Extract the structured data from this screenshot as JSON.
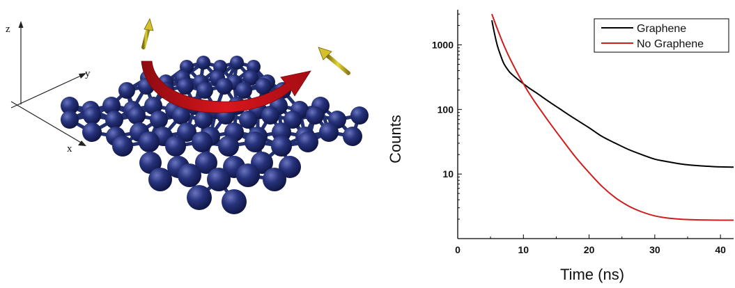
{
  "illustration": {
    "axis_labels": {
      "x": "x",
      "y": "y",
      "z": "z"
    },
    "colors": {
      "atom": "#1f2a6e",
      "atom_highlight": "#5a64b0",
      "bond": "#23306f",
      "arrow_red": "#c8111a",
      "spin_yellow": "#d8c62a"
    },
    "icons": [
      "graphene-lattice-icon",
      "rotation-arrow-icon",
      "spin-arrow-icon"
    ]
  },
  "chart_data": {
    "type": "line",
    "xlabel": "Time (ns)",
    "ylabel": "Counts",
    "xlim": [
      0,
      42
    ],
    "ylim": [
      1,
      3500
    ],
    "yscale": "log",
    "x_ticks": [
      0,
      10,
      20,
      30,
      40
    ],
    "y_ticks": [
      10,
      100,
      1000
    ],
    "grid": false,
    "legend_position": "top-right",
    "series": [
      {
        "name": "Graphene",
        "color": "#000000",
        "x": [
          5.2,
          5.6,
          6.0,
          6.5,
          7.0,
          7.5,
          8.0,
          9.0,
          10.0,
          11.0,
          12.0,
          14.0,
          16.0,
          18.0,
          20.0,
          22.0,
          24.0,
          26.0,
          28.0,
          30.0,
          32.0,
          34.0,
          36.0,
          38.0,
          40.0,
          42.0
        ],
        "y": [
          2400,
          1500,
          1000,
          700,
          520,
          430,
          370,
          300,
          250,
          210,
          180,
          130,
          95,
          70,
          52,
          38,
          30,
          24,
          20,
          17,
          15.5,
          14.3,
          13.6,
          13.2,
          12.9,
          12.8
        ]
      },
      {
        "name": "No Graphene",
        "color": "#d01c1c",
        "x": [
          5.2,
          6.0,
          7.0,
          8.0,
          9.0,
          10.0,
          11.0,
          12.0,
          14.0,
          16.0,
          18.0,
          20.0,
          22.0,
          24.0,
          26.0,
          28.0,
          30.0,
          32.0,
          34.0,
          36.0,
          38.0,
          40.0,
          42.0
        ],
        "y": [
          3000,
          1800,
          1000,
          600,
          380,
          250,
          170,
          120,
          62,
          33,
          18,
          10.5,
          6.4,
          4.3,
          3.2,
          2.6,
          2.25,
          2.08,
          2.0,
          1.96,
          1.94,
          1.93,
          1.93
        ]
      }
    ]
  }
}
